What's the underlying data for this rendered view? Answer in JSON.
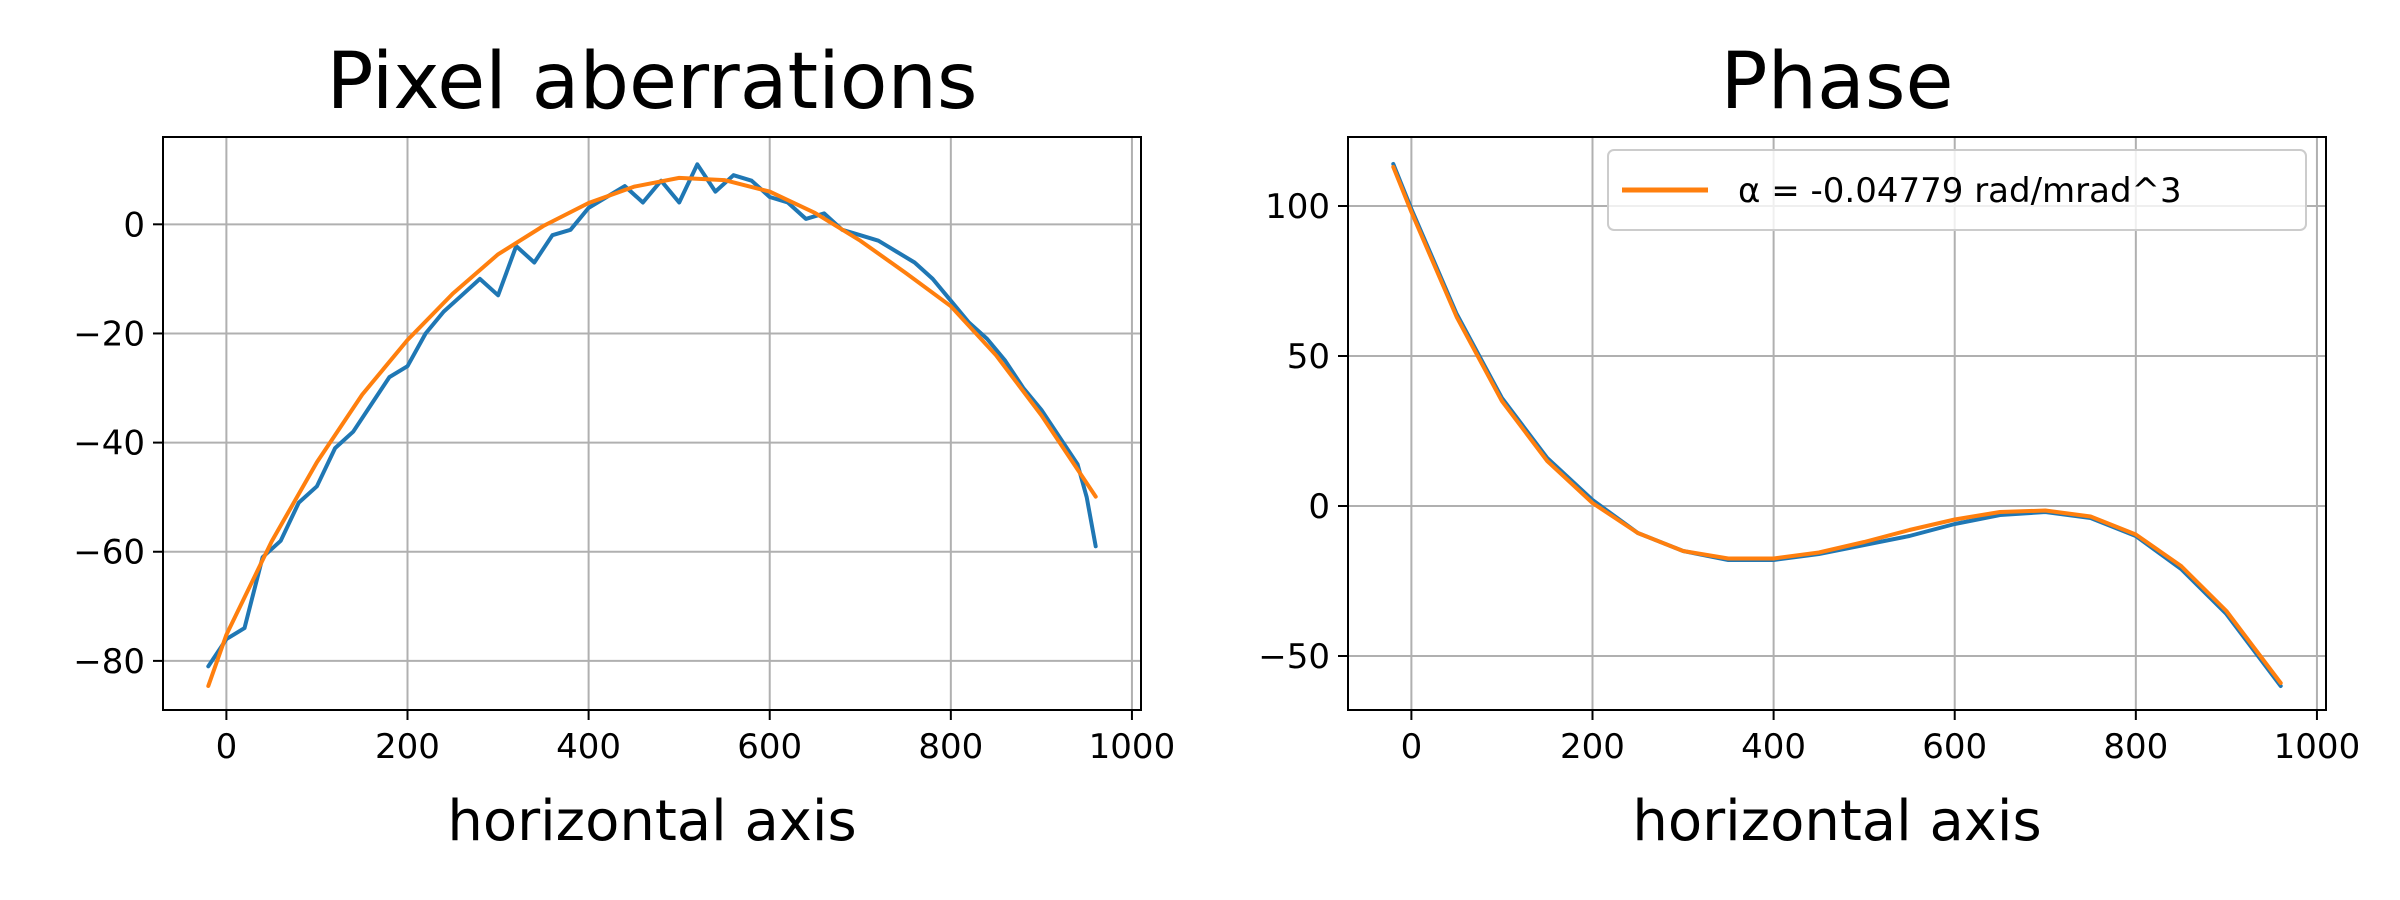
{
  "chart_data": [
    {
      "type": "line",
      "title": "Pixel aberrations",
      "xlabel": "horizontal axis",
      "ylabel": "",
      "xlim": [
        -70,
        1010
      ],
      "ylim": [
        -89,
        16
      ],
      "xticks": [
        0,
        200,
        400,
        600,
        800,
        1000
      ],
      "yticks": [
        -80,
        -60,
        -40,
        -20,
        0
      ],
      "grid": true,
      "series": [
        {
          "color": "#1f77b4",
          "x": [
            -20,
            0,
            20,
            40,
            60,
            80,
            100,
            120,
            140,
            160,
            180,
            200,
            220,
            240,
            260,
            280,
            300,
            320,
            340,
            360,
            380,
            400,
            420,
            440,
            460,
            480,
            500,
            520,
            540,
            560,
            580,
            600,
            620,
            640,
            660,
            680,
            700,
            720,
            740,
            760,
            780,
            800,
            820,
            840,
            860,
            880,
            900,
            920,
            940,
            950,
            960
          ],
          "y": [
            -81,
            -76,
            -74,
            -61,
            -58,
            -51,
            -48,
            -41,
            -38,
            -33,
            -28,
            -26,
            -20,
            -16,
            -13,
            -10,
            -13,
            -4,
            -7,
            -2,
            -1,
            3,
            5,
            7,
            4,
            8,
            4,
            11,
            6,
            9,
            8,
            5,
            4,
            1,
            2,
            -1,
            -2,
            -3,
            -5,
            -7,
            -10,
            -14,
            -18,
            -21,
            -25,
            -30,
            -34,
            -39,
            -44,
            -50,
            -59
          ]
        },
        {
          "color": "#ff7f0e",
          "x": [
            -20,
            0,
            50,
            100,
            150,
            200,
            250,
            300,
            350,
            400,
            450,
            500,
            550,
            600,
            650,
            700,
            750,
            800,
            850,
            900,
            960
          ],
          "y": [
            -84.6,
            -75.2,
            -58.1,
            -43.6,
            -31.2,
            -21.2,
            -12.7,
            -5.5,
            -0.3,
            3.9,
            6.9,
            8.5,
            8.1,
            6.0,
            2.1,
            -3.0,
            -8.9,
            -15.0,
            -24.0,
            -35.0,
            -49.9
          ]
        }
      ]
    },
    {
      "type": "line",
      "title": "Phase",
      "xlabel": "horizontal axis",
      "ylabel": "",
      "xlim": [
        -70,
        1010
      ],
      "ylim": [
        -68,
        123
      ],
      "xticks": [
        0,
        200,
        400,
        600,
        800,
        1000
      ],
      "yticks": [
        -50,
        0,
        50,
        100
      ],
      "grid": true,
      "legend_position": "top-right",
      "series": [
        {
          "color": "#1f77b4",
          "x": [
            -20,
            0,
            50,
            100,
            150,
            200,
            250,
            300,
            350,
            400,
            450,
            500,
            550,
            600,
            650,
            700,
            750,
            800,
            850,
            900,
            960
          ],
          "y": [
            114,
            99,
            64,
            36,
            16,
            2,
            -9,
            -15,
            -18,
            -18,
            -16,
            -13,
            -10,
            -6,
            -3,
            -2,
            -4,
            -10,
            -21,
            -36,
            -60
          ]
        },
        {
          "name": "α = -0.04779 rad/mrad^3",
          "color": "#ff7f0e",
          "x": [
            -20,
            0,
            50,
            100,
            150,
            200,
            250,
            300,
            350,
            400,
            450,
            500,
            550,
            600,
            650,
            700,
            750,
            800,
            850,
            900,
            960
          ],
          "y": [
            113,
            98,
            63,
            35,
            15,
            1,
            -9,
            -15,
            -17.5,
            -17.5,
            -15.5,
            -12,
            -8,
            -4.5,
            -2,
            -1.5,
            -3.5,
            -9.5,
            -20,
            -35,
            -59
          ]
        }
      ]
    }
  ]
}
